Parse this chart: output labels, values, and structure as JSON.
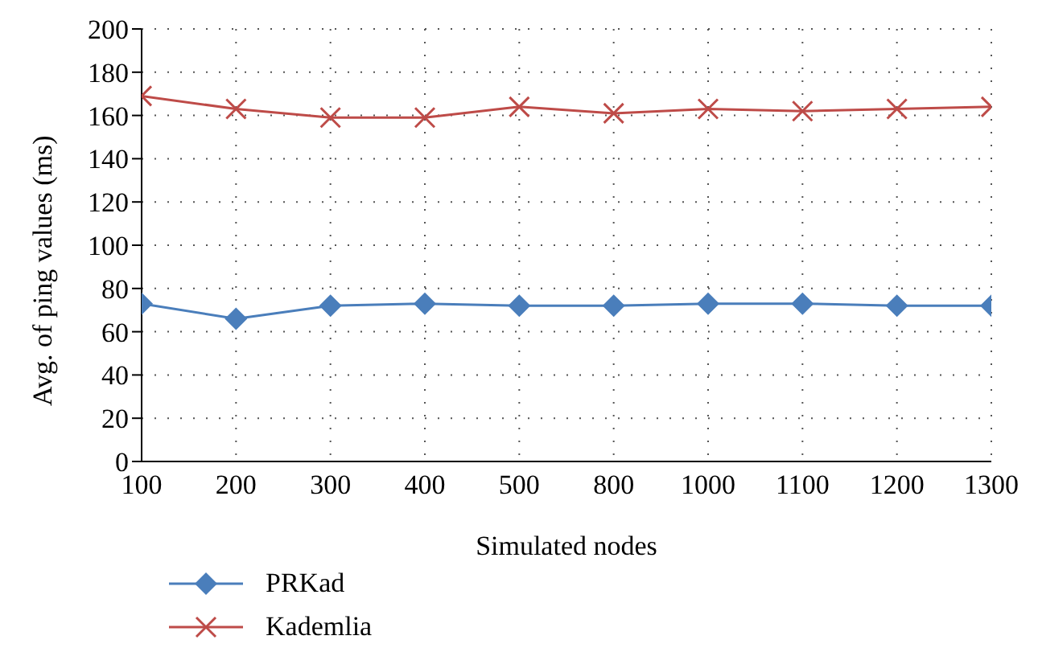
{
  "chart_data": {
    "type": "line",
    "xlabel": "Simulated nodes",
    "ylabel": "Avg. of ping values (ms)",
    "categories": [
      "100",
      "200",
      "300",
      "400",
      "500",
      "800",
      "1000",
      "1100",
      "1200",
      "1300"
    ],
    "series": [
      {
        "name": "PRKad",
        "color": "#4a7ebb",
        "marker": "diamond",
        "values": [
          73,
          66,
          72,
          73,
          72,
          72,
          73,
          73,
          72,
          72
        ]
      },
      {
        "name": "Kademlia",
        "color": "#be4b48",
        "marker": "cross",
        "values": [
          169,
          163,
          159,
          159,
          164,
          161,
          163,
          162,
          163,
          164
        ]
      }
    ],
    "ylim": [
      0,
      200
    ],
    "yticks": [
      0,
      20,
      40,
      60,
      80,
      100,
      120,
      140,
      160,
      180,
      200
    ],
    "grid": true,
    "legend": "bottom"
  }
}
